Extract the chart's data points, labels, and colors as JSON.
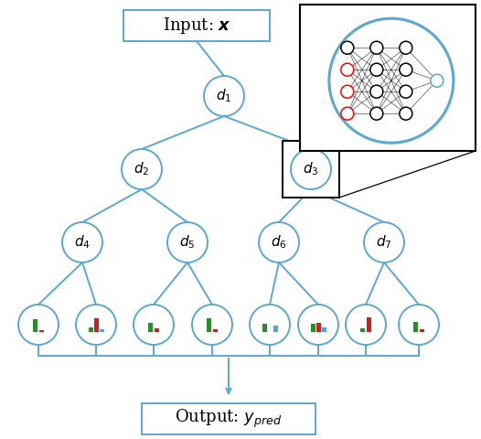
{
  "tree_color": "#5ba8d0",
  "bg_color": "white",
  "leaf_bars": [
    {
      "green": 0.75,
      "red": 0.12,
      "blue": 0.0
    },
    {
      "green": 0.28,
      "red": 0.82,
      "blue": 0.2
    },
    {
      "green": 0.58,
      "red": 0.22,
      "blue": 0.0
    },
    {
      "green": 0.82,
      "red": 0.18,
      "blue": 0.0
    },
    {
      "green": 0.5,
      "red": 0.0,
      "blue": 0.38
    },
    {
      "green": 0.52,
      "red": 0.58,
      "blue": 0.3
    },
    {
      "green": 0.25,
      "red": 0.88,
      "blue": 0.0
    },
    {
      "green": 0.62,
      "red": 0.18,
      "blue": 0.0
    }
  ],
  "nn_layers": [
    4,
    4,
    4,
    1
  ],
  "input_colors": [
    "black",
    "red",
    "red",
    "red"
  ]
}
